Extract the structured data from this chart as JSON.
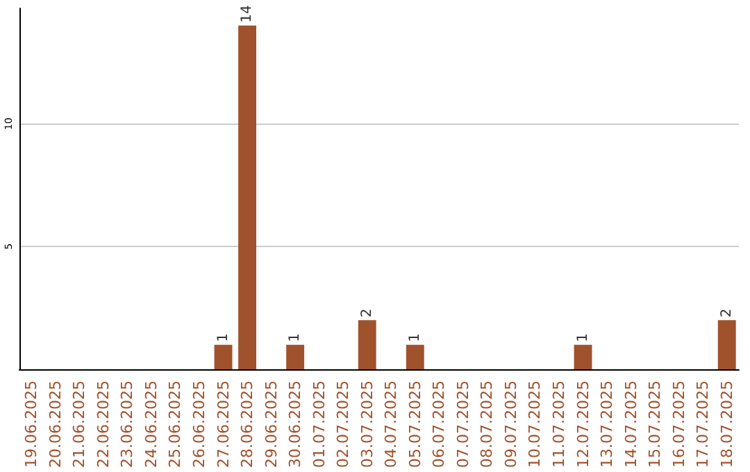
{
  "chart_data": {
    "type": "bar",
    "categories": [
      "19.06.2025",
      "20.06.2025",
      "21.06.2025",
      "22.06.2025",
      "23.06.2025",
      "24.06.2025",
      "25.06.2025",
      "26.06.2025",
      "27.06.2025",
      "28.06.2025",
      "29.06.2025",
      "30.06.2025",
      "01.07.2025",
      "02.07.2025",
      "03.07.2025",
      "04.07.2025",
      "05.07.2025",
      "06.07.2025",
      "07.07.2025",
      "08.07.2025",
      "09.07.2025",
      "10.07.2025",
      "11.07.2025",
      "12.07.2025",
      "13.07.2025",
      "14.07.2025",
      "15.07.2025",
      "16.07.2025",
      "17.07.2025",
      "18.07.2025"
    ],
    "values": [
      0,
      0,
      0,
      0,
      0,
      0,
      0,
      0,
      1,
      14,
      0,
      1,
      0,
      0,
      2,
      0,
      1,
      0,
      0,
      0,
      0,
      0,
      0,
      1,
      0,
      0,
      0,
      0,
      0,
      2
    ],
    "value_labels": [
      null,
      null,
      null,
      null,
      null,
      null,
      null,
      null,
      "1",
      "14",
      null,
      "1",
      null,
      null,
      "2",
      null,
      "1",
      null,
      null,
      null,
      null,
      null,
      null,
      "1",
      null,
      null,
      null,
      null,
      null,
      "2"
    ],
    "color": "#a0522d",
    "ylim": [
      0,
      14.7
    ],
    "yticks": [
      5,
      10
    ],
    "grid": "y"
  }
}
